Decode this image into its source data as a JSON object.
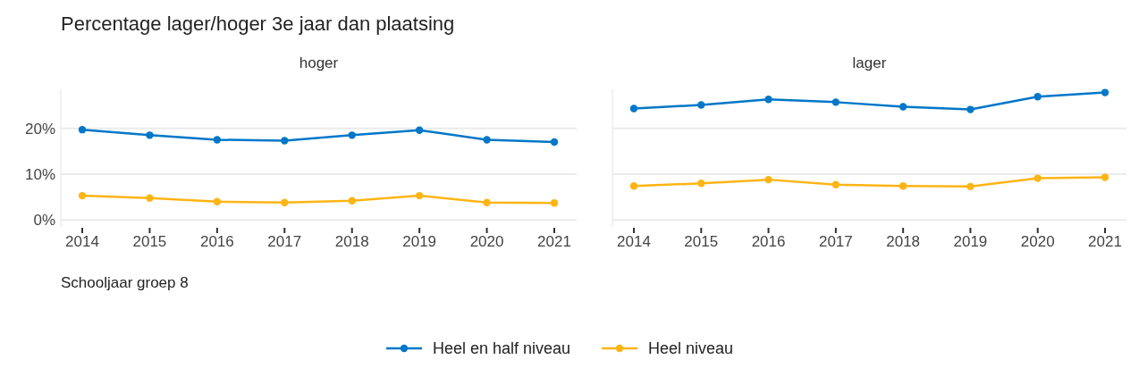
{
  "chart_data": [
    {
      "type": "line",
      "title": "Percentage lager/hoger 3e jaar dan plaatsing",
      "subtitle": "hoger",
      "xlabel": "Schooljaar groep 8",
      "categories": [
        "2014",
        "2015",
        "2016",
        "2017",
        "2018",
        "2019",
        "2020",
        "2021"
      ],
      "ylim": [
        -1.5,
        28.5
      ],
      "yticks": [
        {
          "value": 0,
          "label": "0%"
        },
        {
          "value": 10,
          "label": "10%"
        },
        {
          "value": 20,
          "label": "20%"
        }
      ],
      "grid": "y",
      "marker": "circle",
      "legend": "bottom",
      "series": [
        {
          "name": "Heel en half niveau",
          "color": "#0077c8",
          "values": [
            19.7,
            18.5,
            17.5,
            17.3,
            18.5,
            19.6,
            17.5,
            17.0
          ]
        },
        {
          "name": "Heel niveau",
          "color": "#fdb515",
          "values": [
            5.3,
            4.8,
            4.0,
            3.8,
            4.2,
            5.3,
            3.8,
            3.7
          ]
        }
      ]
    },
    {
      "type": "line",
      "subtitle": "lager",
      "categories": [
        "2014",
        "2015",
        "2016",
        "2017",
        "2018",
        "2019",
        "2020",
        "2021"
      ],
      "ylim": [
        -1.5,
        28.5
      ],
      "yticks": [
        {
          "value": 0,
          "label": null
        },
        {
          "value": 10,
          "label": null
        },
        {
          "value": 20,
          "label": null
        }
      ],
      "tick_labels": "x",
      "grid": "y",
      "marker": "circle",
      "series": [
        {
          "name": "Heel en half niveau",
          "color": "#0077c8",
          "values": [
            24.3,
            25.1,
            26.3,
            25.7,
            24.7,
            24.1,
            26.9,
            27.8
          ]
        },
        {
          "name": "Heel niveau",
          "color": "#fdb515",
          "values": [
            7.4,
            8.0,
            8.8,
            7.7,
            7.4,
            7.3,
            9.1,
            9.3
          ]
        }
      ]
    }
  ]
}
